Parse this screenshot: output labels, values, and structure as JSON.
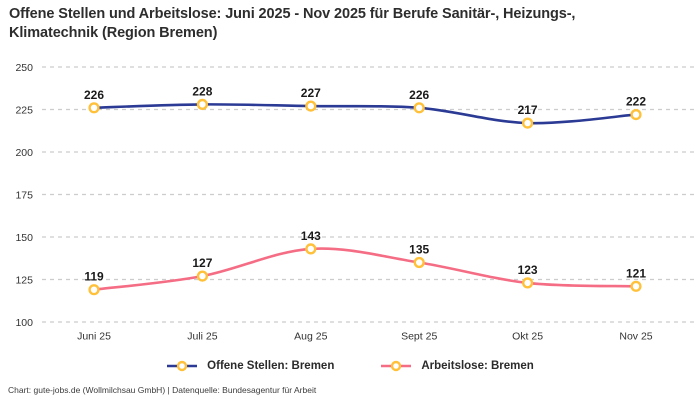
{
  "header": {
    "title": "Offene Stellen und Arbeitslose: Juni 2025 - Nov 2025 für Berufe Sanitär-, Heizungs-, Klimatechnik (Region Bremen)"
  },
  "footer": {
    "text": "Chart: gute-jobs.de (Wollmilchsau GmbH) | Datenquelle: Bundesagentur für Arbeit"
  },
  "colors": {
    "grid": "#cccccc",
    "axis_text": "#333333",
    "value_label_text": "#1a1a1a",
    "marker_stroke": "#ffc13a",
    "marker_fill": "#ffffff",
    "series_blue": "#2b3a94",
    "series_pink": "#f56d84"
  },
  "chart_data": {
    "type": "line",
    "title": "Offene Stellen und Arbeitslose: Juni 2025 - Nov 2025 für Berufe Sanitär-, Heizungs-, Klimatechnik (Region Bremen)",
    "categories": [
      "Juni 25",
      "Juli 25",
      "Aug 25",
      "Sept 25",
      "Okt 25",
      "Nov 25"
    ],
    "series": [
      {
        "name": "Offene Stellen: Bremen",
        "color": "#2b3a94",
        "values": [
          226,
          228,
          227,
          226,
          217,
          222
        ]
      },
      {
        "name": "Arbeitslose: Bremen",
        "color": "#f56d84",
        "values": [
          119,
          127,
          143,
          135,
          123,
          121
        ]
      }
    ],
    "ylim": [
      100,
      250
    ],
    "yticks": [
      250,
      225,
      200,
      175,
      150,
      125,
      100
    ],
    "xlabel": "",
    "ylabel": "",
    "grid": "horizontal-dashed",
    "legend_position": "bottom",
    "marker": "open-circle-yellow"
  }
}
